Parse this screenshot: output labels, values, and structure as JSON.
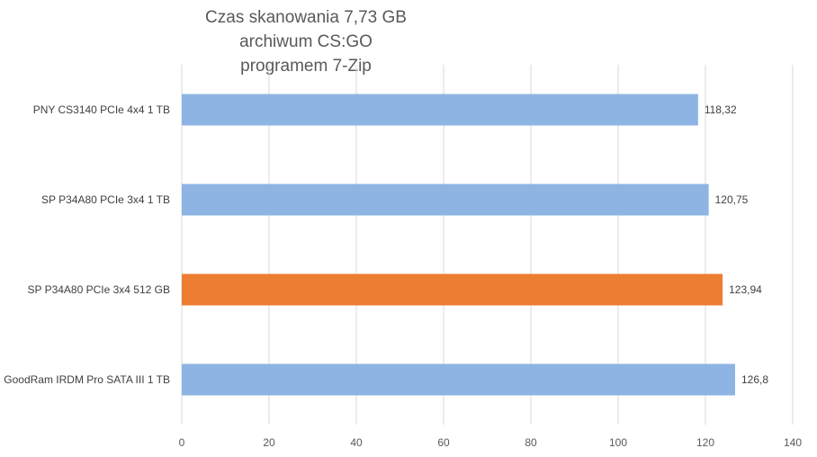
{
  "chart_data": {
    "type": "bar",
    "orientation": "horizontal",
    "title": [
      "Czas skanowania 7,73 GB archiwum CS:GO",
      "programem 7-Zip"
    ],
    "categories": [
      "PNY CS3140 PCIe 4x4 1 TB",
      "SP P34A80 PCIe 3x4 1 TB",
      "SP P34A80 PCIe 3x4 512 GB",
      "GoodRam IRDM Pro SATA III 1 TB"
    ],
    "values": [
      118.32,
      120.75,
      123.94,
      126.8
    ],
    "data_labels": [
      "118,32",
      "120,75",
      "123,94",
      "126,8"
    ],
    "bar_colors": [
      "#8eb4e3",
      "#8eb4e3",
      "#ed7d31",
      "#8eb4e3"
    ],
    "xlim": [
      0,
      140
    ],
    "xticks": [
      0,
      20,
      40,
      60,
      80,
      100,
      120,
      140
    ],
    "xtick_labels": [
      "0",
      "20",
      "40",
      "60",
      "80",
      "100",
      "120",
      "140"
    ],
    "grid": "vertical",
    "legend": "none",
    "xlabel": "",
    "ylabel": ""
  }
}
